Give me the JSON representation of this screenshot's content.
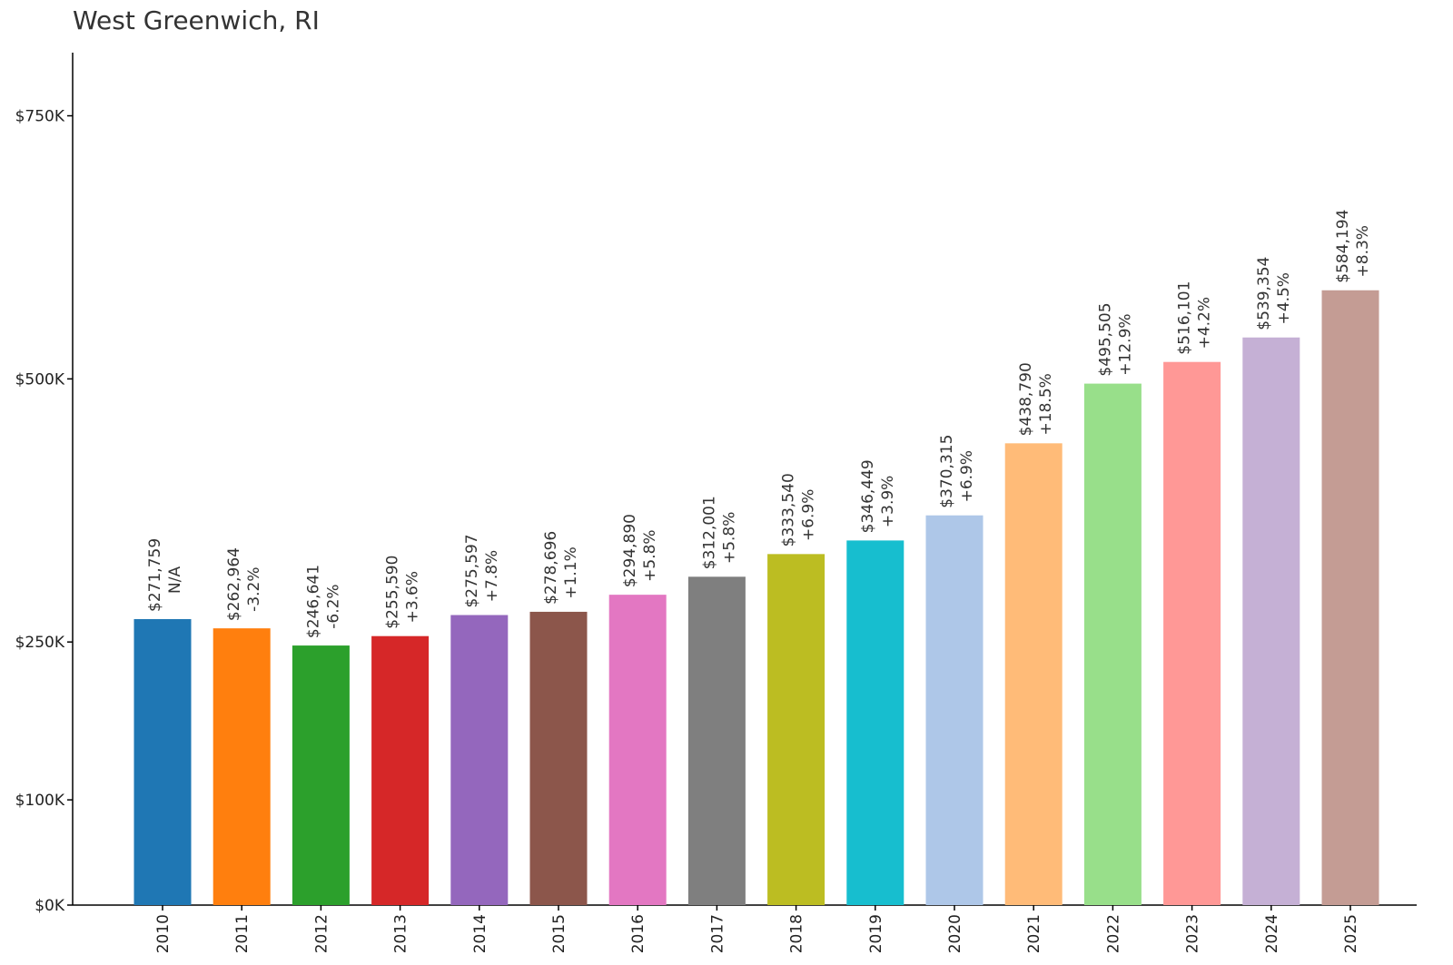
{
  "chart_data": {
    "type": "bar",
    "title": "West Greenwich, RI",
    "xlabel": "",
    "ylabel": "",
    "categories": [
      "2010",
      "2011",
      "2012",
      "2013",
      "2014",
      "2015",
      "2016",
      "2017",
      "2018",
      "2019",
      "2020",
      "2021",
      "2022",
      "2023",
      "2024",
      "2025"
    ],
    "values": [
      271759,
      262964,
      246641,
      255590,
      275597,
      278696,
      294890,
      312001,
      333540,
      346449,
      370315,
      438790,
      495505,
      516101,
      539354,
      584194
    ],
    "value_labels": [
      "$271,759",
      "$262,964",
      "$246,641",
      "$255,590",
      "$275,597",
      "$278,696",
      "$294,890",
      "$312,001",
      "$333,540",
      "$346,449",
      "$370,315",
      "$438,790",
      "$495,505",
      "$516,101",
      "$539,354",
      "$584,194"
    ],
    "change_labels": [
      "N/A",
      "-3.2%",
      "-6.2%",
      "+3.6%",
      "+7.8%",
      "+1.1%",
      "+5.8%",
      "+5.8%",
      "+6.9%",
      "+3.9%",
      "+6.9%",
      "+18.5%",
      "+12.9%",
      "+4.2%",
      "+4.5%",
      "+8.3%"
    ],
    "colors": [
      "#1f77b4",
      "#ff7f0e",
      "#2ca02c",
      "#d62728",
      "#9467bd",
      "#8c564b",
      "#e377c2",
      "#7f7f7f",
      "#bcbd22",
      "#17becf",
      "#aec7e8",
      "#ffbb78",
      "#98df8a",
      "#ff9896",
      "#c5b0d5",
      "#c49c94"
    ],
    "yticks": [
      0,
      100000,
      250000,
      500000,
      750000
    ],
    "ytick_labels": [
      "$0K",
      "$100K",
      "$250K",
      "$500K",
      "$750K"
    ],
    "ylim": [
      0,
      810000
    ],
    "grid": false,
    "legend": "none"
  }
}
